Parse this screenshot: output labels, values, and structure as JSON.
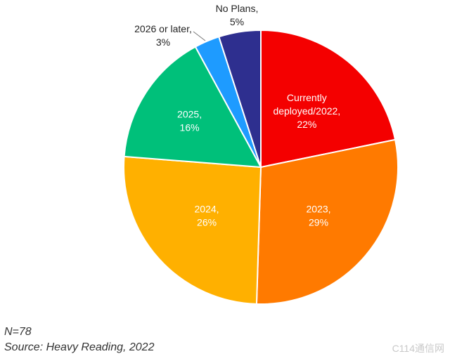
{
  "chart_data": {
    "type": "pie",
    "slices": [
      {
        "label_lines": [
          "Currently",
          "deployed/2022,",
          "22%"
        ],
        "value": 22,
        "color": "#f40000"
      },
      {
        "label_lines": [
          "2023,",
          "29%"
        ],
        "value": 29,
        "color": "#ff7a00"
      },
      {
        "label_lines": [
          "2024,",
          "26%"
        ],
        "value": 26,
        "color": "#ffb000"
      },
      {
        "label_lines": [
          "2025,",
          "16%"
        ],
        "value": 16,
        "color": "#00c07a"
      },
      {
        "label_lines": [
          "2026 or later,",
          "3%"
        ],
        "value": 3,
        "color": "#1e9bff"
      },
      {
        "label_lines": [
          "No Plans,",
          "5%"
        ],
        "value": 5,
        "color": "#2e2f8f"
      }
    ]
  },
  "notes": {
    "n": "N=78",
    "source": "Source: Heavy Reading, 2022"
  },
  "watermark": "C114通信网"
}
